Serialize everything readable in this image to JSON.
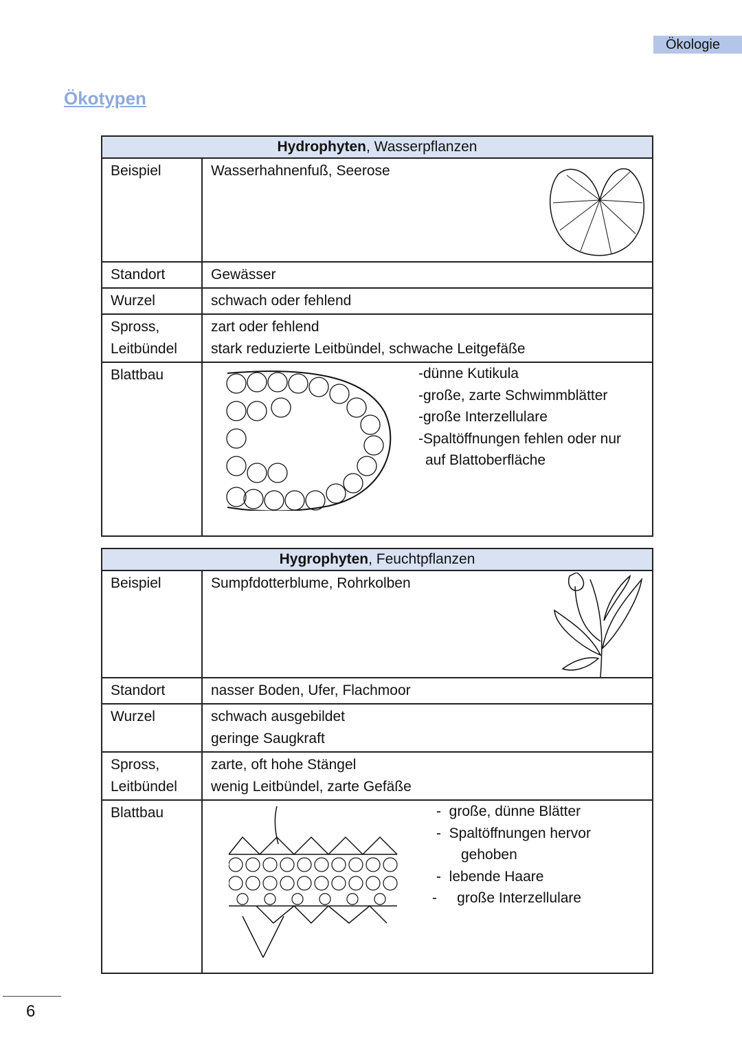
{
  "header_tag": "Ökologie",
  "title": "Ökotypen",
  "page_number": "6",
  "tables": [
    {
      "heading_bold": "Hydrophyten",
      "heading_rest": ", Wasserpflanzen",
      "rows": [
        {
          "label": "Beispiel",
          "value": "Wasserhahnenfuß, Seerose"
        },
        {
          "label": "Standort",
          "value": "Gewässer"
        },
        {
          "label": "Wurzel",
          "value": "schwach oder fehlend"
        },
        {
          "label": "Spross, Leitbündel",
          "lines": [
            "zart oder fehlend",
            "stark reduzierte Leitbündel, schwache Leitgefäße"
          ]
        },
        {
          "label": "Blattbau",
          "bullets": [
            "dünne Kutikula",
            "große, zarte Schwimmblätter",
            "große Interzellulare",
            "Spaltöffnungen fehlen oder nur auf Blattoberfläche"
          ]
        }
      ]
    },
    {
      "heading_bold": "Hygrophyten",
      "heading_rest": ", Feuchtpflanzen",
      "rows": [
        {
          "label": "Beispiel",
          "value": "Sumpfdotterblume, Rohrkolben"
        },
        {
          "label": "Standort",
          "value": "nasser Boden, Ufer, Flachmoor"
        },
        {
          "label": "Wurzel",
          "lines": [
            "schwach ausgebildet",
            "geringe Saugkraft"
          ]
        },
        {
          "label": "Spross, Leitbündel",
          "lines": [
            "zarte, oft hohe Stängel",
            "wenig Leitbündel, zarte Gefäße"
          ]
        },
        {
          "label": "Blattbau",
          "bullets": [
            "große, dünne Blätter",
            "Spaltöffnungen hervor gehoben",
            "lebende Haare",
            "große Interzellulare"
          ]
        }
      ]
    }
  ]
}
